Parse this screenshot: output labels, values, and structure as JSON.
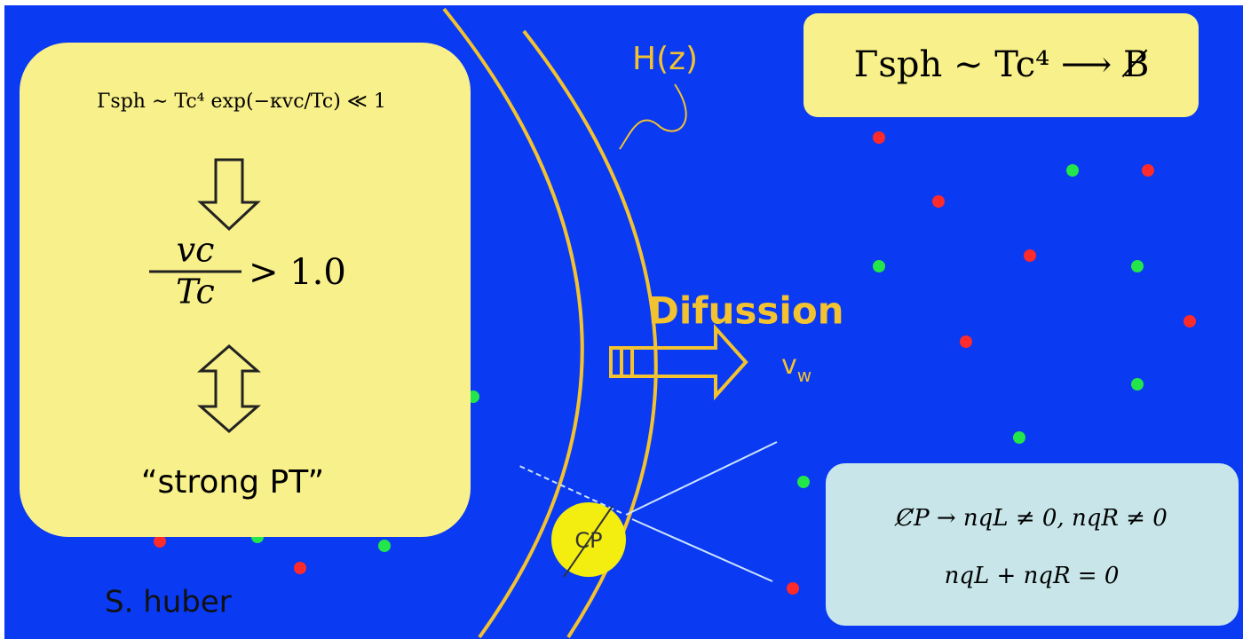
{
  "left_box": {
    "condition": "Γsph ∼ Tc⁴ exp(−κvc/Tc) ≪ 1",
    "ratio_numerator": "vc",
    "ratio_denominator": "Tc",
    "ratio_rest": "> 1.0",
    "label": "“strong PT”"
  },
  "wall_label": "H(z)",
  "top_right_box": "Γsph ∼ Tc⁴ ⟶ B̸",
  "flow": {
    "label": "Difussion",
    "velocity": "v",
    "velocity_subscript": "w"
  },
  "cp_badge": "CP",
  "bottom_right_box": {
    "line1": "C̸P → nqL ≠ 0,  nqR ≠ 0",
    "line2": "nqL + nqR = 0"
  },
  "credit": "S. huber"
}
